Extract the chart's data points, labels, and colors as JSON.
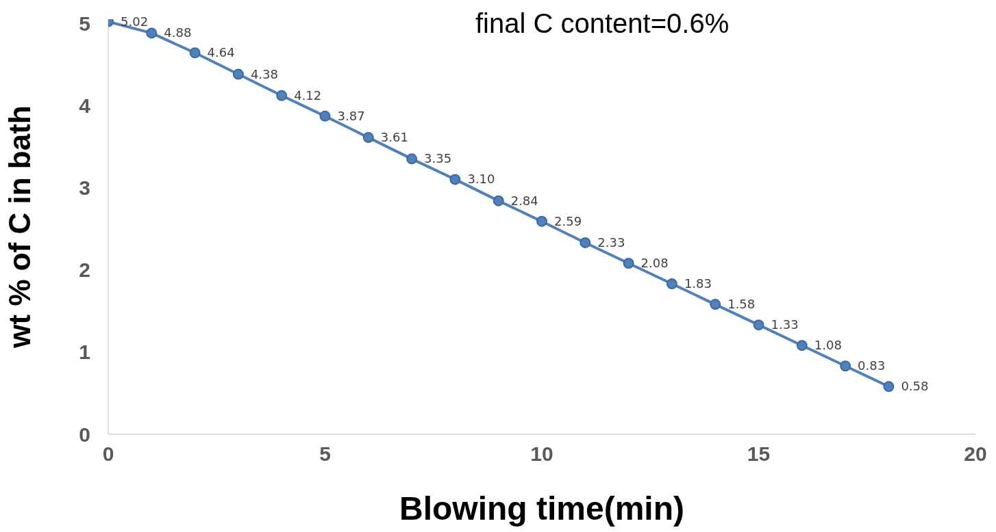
{
  "chart_data": {
    "type": "line",
    "xlabel": "Blowing time(min)",
    "ylabel": "wt % of C in bath",
    "annotations": [
      "final C content=0.6%"
    ],
    "x": [
      0,
      1,
      2,
      3,
      4,
      5,
      6,
      7,
      8,
      9,
      10,
      11,
      12,
      13,
      14,
      15,
      16,
      17,
      18
    ],
    "series": [
      {
        "color": "#4f81bd",
        "values": [
          5.02,
          4.88,
          4.64,
          4.38,
          4.12,
          3.87,
          3.61,
          3.35,
          3.1,
          2.84,
          2.59,
          2.33,
          2.08,
          1.83,
          1.58,
          1.33,
          1.08,
          0.83,
          0.58
        ],
        "value_labels": [
          "5.02",
          "4.88",
          "4.64",
          "4.38",
          "4.12",
          "3.87",
          "3.61",
          "3.35",
          "3.10",
          "2.84",
          "2.59",
          "2.33",
          "2.08",
          "1.83",
          "1.58",
          "1.33",
          "1.08",
          "0.83",
          "0.58"
        ]
      }
    ],
    "xlim": [
      0,
      20
    ],
    "xticks": [
      0,
      5,
      10,
      15,
      20
    ],
    "ylim": [
      0,
      5.05
    ],
    "yticks": [
      0,
      1,
      2,
      3,
      4,
      5
    ],
    "grid": false,
    "legend": false,
    "marker": "circle",
    "line_style": "solid"
  }
}
